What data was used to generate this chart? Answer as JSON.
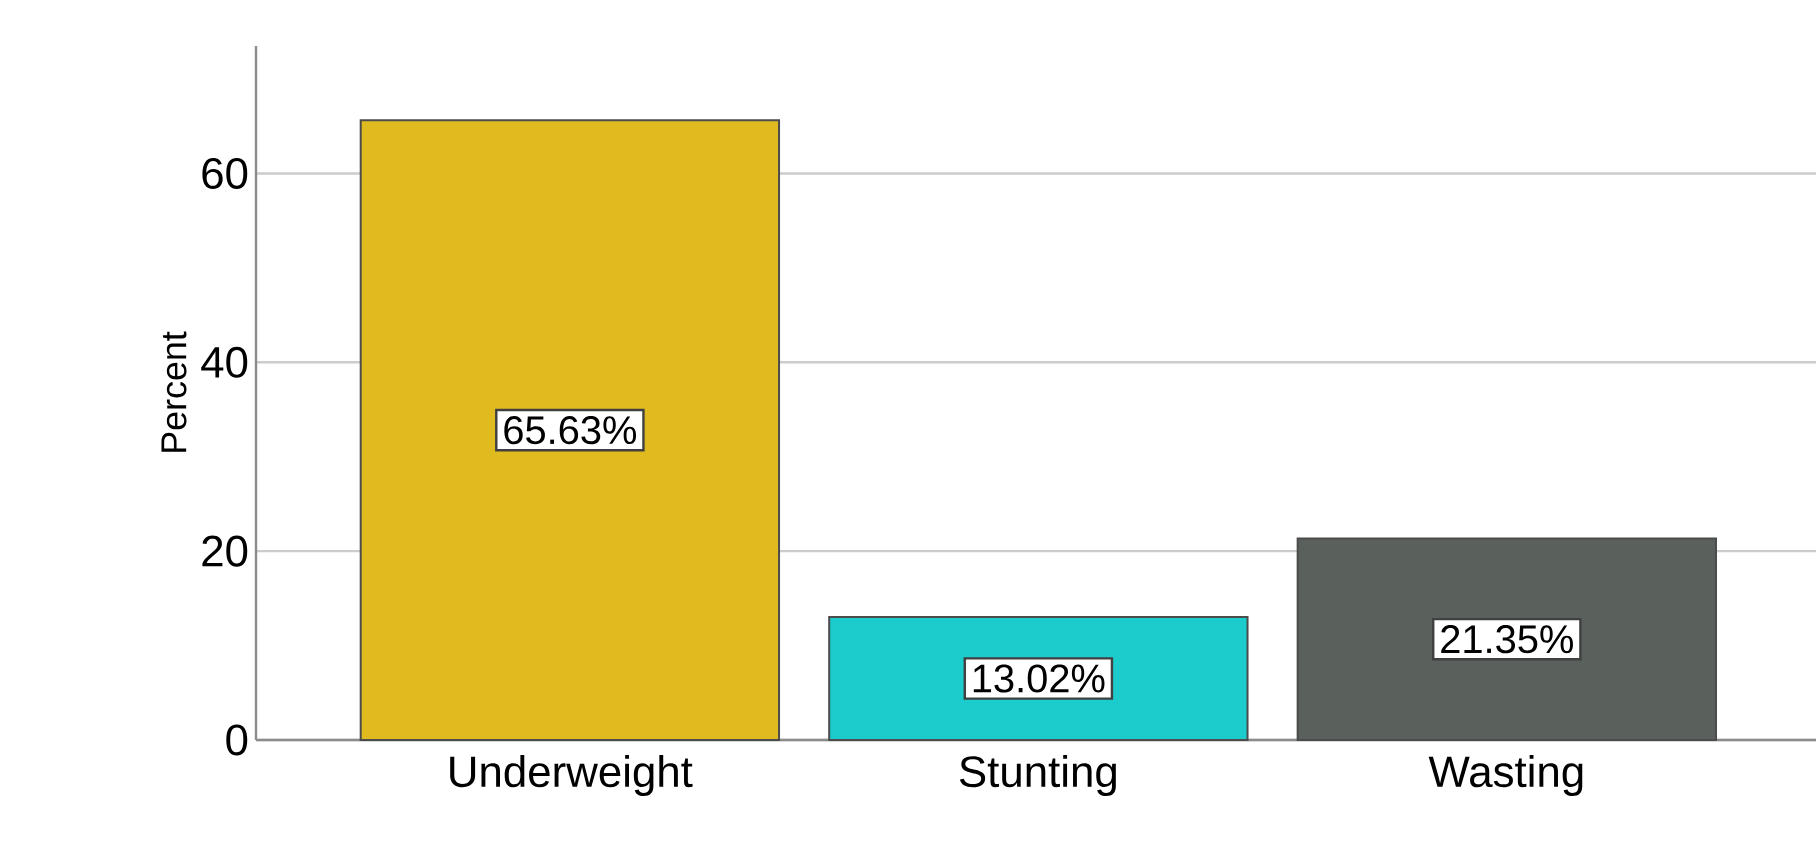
{
  "chart_data": {
    "type": "bar",
    "ylabel": "Percent",
    "categories": [
      "Underweight",
      "Stunting",
      "Wasting"
    ],
    "values": [
      65.63,
      13.02,
      21.35
    ],
    "colors": [
      "#e0bb1f",
      "#1ccbcb",
      "#5a605b"
    ],
    "value_labels": [
      "65.63%",
      "13.02%",
      "21.35%"
    ],
    "ylim": [
      0,
      73.5
    ],
    "yticks": [
      0,
      20,
      40,
      60
    ],
    "grid": "y"
  }
}
